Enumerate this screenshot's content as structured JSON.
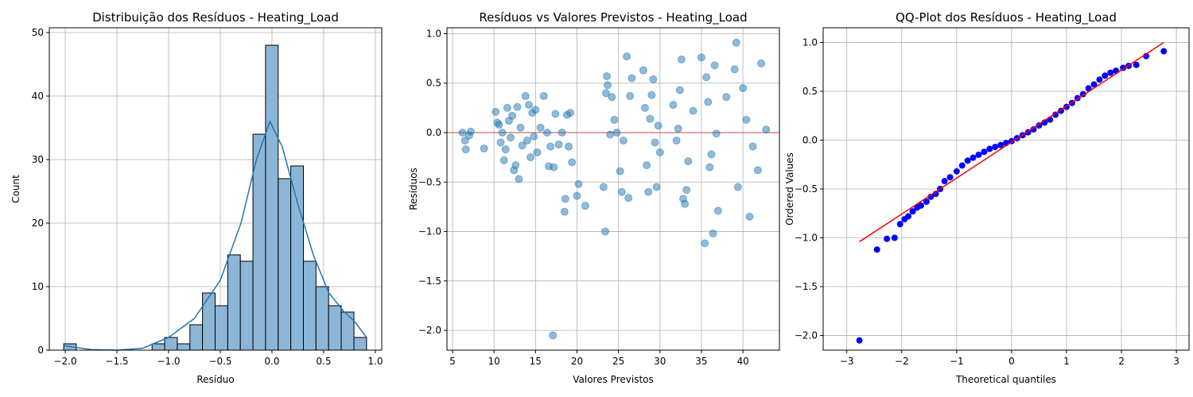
{
  "chart_data": [
    {
      "type": "histogram",
      "title": "Distribuição dos Resíduos - Heating_Load",
      "xlabel": "Resíduo",
      "ylabel": "Count",
      "bins": [
        -2.015,
        -1.893,
        -1.771,
        -1.649,
        -1.527,
        -1.405,
        -1.282,
        -1.16,
        -1.038,
        -0.916,
        -0.794,
        -0.672,
        -0.55,
        -0.428,
        -0.306,
        -0.184,
        -0.062,
        0.06,
        0.182,
        0.304,
        0.426,
        0.548,
        0.67,
        0.793,
        0.915
      ],
      "values": [
        1,
        0,
        0,
        0,
        0,
        0,
        0,
        1,
        2,
        1,
        4,
        9,
        7,
        15,
        14,
        34,
        48,
        27,
        29,
        14,
        10,
        7,
        6,
        2
      ],
      "color": "#8cb6d7",
      "edgecolor": "#000000",
      "kde": {
        "x": [
          -2.015,
          -1.75,
          -1.5,
          -1.25,
          -1.0,
          -0.75,
          -0.5,
          -0.3,
          -0.15,
          -0.02,
          0.1,
          0.25,
          0.4,
          0.55,
          0.7,
          0.8,
          0.915
        ],
        "values": [
          0.7,
          0.1,
          0,
          0.3,
          2,
          5,
          11,
          20,
          30,
          36,
          32,
          23,
          15,
          9,
          6,
          4.5,
          2
        ],
        "color": "#1f77b4"
      },
      "xlim": [
        -2.154,
        1.062
      ],
      "ylim": [
        0,
        50.75
      ],
      "xticks": [
        {
          "value": -2,
          "label": "−2.0"
        },
        {
          "value": -1.5,
          "label": "−1.5"
        },
        {
          "value": -1,
          "label": "−1.0"
        },
        {
          "value": -0.5,
          "label": "−0.5"
        },
        {
          "value": 0,
          "label": "0.0"
        },
        0.5,
        {
          "value": 1,
          "label": "1.0"
        }
      ],
      "yticks": [
        0,
        10,
        20,
        30,
        40,
        50
      ],
      "grid": true
    },
    {
      "type": "scatter",
      "title": "Resíduos vs Valores Previstos - Heating_Load",
      "xlabel": "Valores Previstos",
      "ylabel": "Resíduos",
      "x": [
        6.2,
        6.5,
        6.6,
        7.0,
        7.2,
        8.8,
        10.2,
        10.4,
        10.6,
        10.8,
        11.0,
        11.2,
        11.4,
        11.6,
        11.8,
        12.0,
        12.2,
        12.4,
        12.6,
        12.8,
        13.0,
        13.2,
        13.4,
        13.8,
        14.0,
        14.2,
        14.4,
        14.6,
        14.8,
        15.0,
        15.2,
        15.6,
        16.0,
        16.4,
        16.6,
        16.8,
        17.1,
        17.2,
        17.4,
        17.8,
        18.2,
        18.5,
        18.6,
        18.8,
        19.0,
        19.2,
        19.4,
        20.2,
        20.0,
        21.0,
        23.2,
        23.4,
        23.5,
        23.6,
        23.7,
        24.0,
        24.2,
        24.5,
        24.8,
        25.2,
        25.4,
        25.6,
        26.0,
        26.2,
        26.4,
        26.6,
        28.0,
        28.2,
        28.4,
        28.6,
        28.8,
        29.0,
        29.2,
        29.4,
        29.6,
        29.8,
        30.0,
        31.6,
        32.0,
        32.2,
        32.4,
        32.6,
        32.8,
        33.0,
        33.2,
        33.4,
        34.0,
        35.0,
        35.4,
        35.6,
        35.8,
        36.0,
        36.2,
        36.4,
        36.6,
        36.8,
        37.0,
        38.0,
        39.0,
        39.2,
        39.4,
        40.0,
        40.4,
        40.8,
        41.2,
        41.8,
        42.2,
        42.8
      ],
      "values": [
        0.0,
        -0.08,
        -0.17,
        -0.03,
        0.01,
        -0.16,
        0.21,
        0.1,
        0.08,
        -0.1,
        0.0,
        -0.28,
        -0.17,
        0.25,
        0.12,
        -0.05,
        0.17,
        -0.38,
        -0.33,
        0.26,
        -0.47,
        0.05,
        -0.13,
        0.37,
        -0.08,
        0.28,
        -0.25,
        0.2,
        -0.04,
        0.23,
        -0.2,
        0.05,
        0.37,
        0.0,
        -0.34,
        -0.14,
        -2.05,
        -0.35,
        0.19,
        -0.12,
        0.0,
        -0.8,
        -0.67,
        0.18,
        -0.14,
        0.2,
        -0.3,
        -0.52,
        -0.64,
        -0.74,
        -0.55,
        -1.0,
        0.4,
        0.57,
        0.48,
        -0.02,
        0.36,
        0.13,
        0.0,
        -0.39,
        -0.6,
        -0.08,
        0.77,
        -0.66,
        0.37,
        0.55,
        0.63,
        0.25,
        -0.33,
        -0.6,
        0.14,
        0.38,
        0.54,
        -0.1,
        -0.55,
        0.07,
        -0.2,
        0.28,
        -0.08,
        0.04,
        0.43,
        0.74,
        -0.67,
        -0.72,
        -0.58,
        -0.29,
        0.22,
        0.76,
        -1.12,
        0.56,
        0.31,
        -0.35,
        -0.22,
        -1.02,
        0.68,
        -0.01,
        -0.79,
        0.36,
        0.64,
        0.91,
        -0.55,
        0.45,
        0.13,
        -0.85,
        -0.14,
        -0.38,
        0.7,
        0.03
      ],
      "color": "#1f77b4",
      "hline": {
        "value": 0,
        "color": "#d62728"
      },
      "xlim": [
        4.33,
        44.4
      ],
      "ylim": [
        -2.2,
        1.06
      ],
      "xticks": [
        5,
        10,
        15,
        20,
        25,
        30,
        35,
        40
      ],
      "yticks": [
        {
          "value": 1,
          "label": "1.0"
        },
        0.5,
        {
          "value": 0,
          "label": "0.0"
        },
        {
          "value": -0.5,
          "label": "−0.5"
        },
        {
          "value": -1,
          "label": "−1.0"
        },
        {
          "value": -1.5,
          "label": "−1.5"
        },
        {
          "value": -2,
          "label": "−2.0"
        }
      ],
      "grid": true
    },
    {
      "type": "scatter",
      "title": "QQ-Plot dos Resíduos - Heating_Load",
      "xlabel": "Theoretical quantiles",
      "ylabel": "Ordered Values",
      "x": [
        -2.77,
        -2.45,
        -2.27,
        -2.13,
        -2.03,
        -1.95,
        -1.88,
        -1.8,
        -1.72,
        -1.65,
        -1.55,
        -1.47,
        -1.38,
        -1.3,
        -1.22,
        -1.12,
        -1.0,
        -0.9,
        -0.8,
        -0.7,
        -0.6,
        -0.5,
        -0.4,
        -0.3,
        -0.2,
        -0.1,
        0.0,
        0.1,
        0.2,
        0.3,
        0.4,
        0.5,
        0.6,
        0.7,
        0.8,
        0.9,
        1.0,
        1.1,
        1.2,
        1.3,
        1.4,
        1.5,
        1.6,
        1.7,
        1.8,
        1.9,
        2.03,
        2.13,
        2.27,
        2.45,
        2.77
      ],
      "values": [
        -2.05,
        -1.12,
        -1.01,
        -1.0,
        -0.86,
        -0.81,
        -0.78,
        -0.73,
        -0.69,
        -0.67,
        -0.63,
        -0.58,
        -0.55,
        -0.5,
        -0.42,
        -0.38,
        -0.32,
        -0.26,
        -0.21,
        -0.18,
        -0.15,
        -0.12,
        -0.09,
        -0.07,
        -0.05,
        -0.03,
        -0.01,
        0.02,
        0.05,
        0.08,
        0.11,
        0.15,
        0.18,
        0.21,
        0.26,
        0.3,
        0.34,
        0.38,
        0.43,
        0.47,
        0.53,
        0.57,
        0.62,
        0.66,
        0.69,
        0.71,
        0.74,
        0.76,
        0.77,
        0.86,
        0.91
      ],
      "color": "#0000ff",
      "fit_line": {
        "x": [
          -2.77,
          2.77
        ],
        "values": [
          -1.04,
          1.0
        ],
        "color": "#ff0000"
      },
      "xlim": [
        -3.43,
        3.23
      ],
      "ylim": [
        -2.15,
        1.15
      ],
      "xticks": [
        {
          "value": -3,
          "label": "−3"
        },
        {
          "value": -2,
          "label": "−2"
        },
        {
          "value": -1,
          "label": "−1"
        },
        0,
        1,
        2,
        3
      ],
      "yticks": [
        {
          "value": 1,
          "label": "1.0"
        },
        0.5,
        {
          "value": 0,
          "label": "0.0"
        },
        {
          "value": -0.5,
          "label": "−0.5"
        },
        {
          "value": -1,
          "label": "−1.0"
        },
        {
          "value": -1.5,
          "label": "−1.5"
        },
        {
          "value": -2,
          "label": "−2.0"
        }
      ],
      "grid": true
    }
  ]
}
